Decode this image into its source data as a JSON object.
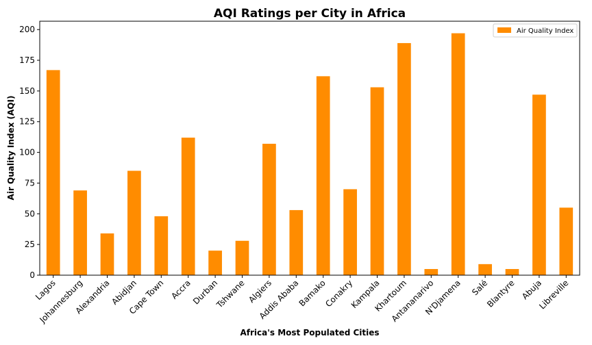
{
  "chart_data": {
    "type": "bar",
    "title": "AQI Ratings per City in Africa",
    "xlabel": "Africa's Most Populated Cities",
    "ylabel": "Air Quality Index (AQI)",
    "categories": [
      "Lagos",
      "Johannesburg",
      "Alexandria",
      "Abidjan",
      "Cape Town",
      "Accra",
      "Durban",
      "Tshwane",
      "Algiers",
      "Addis Ababa",
      "Bamako",
      "Conakry",
      "Kampala",
      "Khartoum",
      "Antananarivo",
      "N'Djamena",
      "Salé",
      "Blantyre",
      "Abuja",
      "Libreville"
    ],
    "series": [
      {
        "name": "Air Quality Index",
        "color": "#ff8c00",
        "values": [
          167,
          69,
          34,
          85,
          48,
          112,
          20,
          28,
          107,
          53,
          162,
          70,
          153,
          189,
          5,
          197,
          9,
          5,
          147,
          55
        ]
      }
    ],
    "ylim": [
      0,
      206.8
    ],
    "yticks": [
      0,
      25,
      50,
      75,
      100,
      125,
      150,
      175,
      200
    ],
    "grid": false,
    "legend_position": "top-right"
  }
}
